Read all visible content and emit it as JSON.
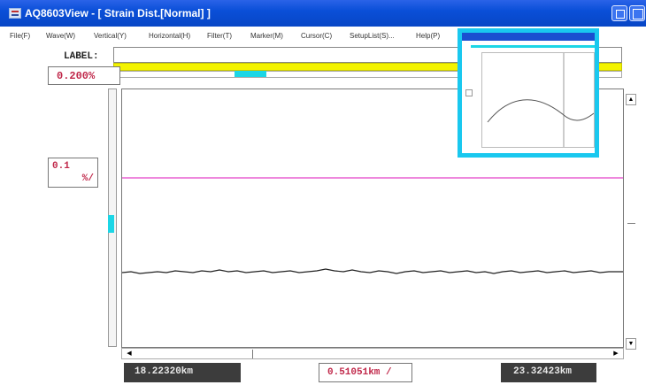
{
  "window": {
    "title": "AQ8603View - [ Strain Dist.[Normal] ]"
  },
  "menu": [
    {
      "label": "File(F)"
    },
    {
      "label": "Wave(W)"
    },
    {
      "label": "Vertical(Y)"
    },
    {
      "label": "Horizontal(H)"
    },
    {
      "label": "Filter(T)"
    },
    {
      "label": "Marker(M)"
    },
    {
      "label": "Cursor(C)"
    },
    {
      "label": "SetupList(S)..."
    },
    {
      "label": "Help(P)"
    }
  ],
  "label_field": {
    "caption": "LABEL:",
    "value": ""
  },
  "readouts": {
    "offset": "0.200%",
    "scale_value": "0.1",
    "scale_unit": "%/",
    "start_distance": "18.22320km",
    "span_per_div": "0.51051km /",
    "end_distance": "23.32423km"
  },
  "colors": {
    "titlebar": "#0a4fd8",
    "marker_line": "#ee88dd",
    "trace": "#222222",
    "readout_text": "#c0284a",
    "highlight_frame": "#19c8ef",
    "yellow_bar": "#f3f300",
    "cyan_marker": "#1cd6e6"
  },
  "icons": {
    "app": "app-icon",
    "minimize": "minimize-icon",
    "maximize": "maximize-icon",
    "scroll_up": "arrow-up-icon",
    "scroll_down": "arrow-down-icon",
    "scroll_left": "arrow-left-icon",
    "scroll_right": "arrow-right-icon"
  }
}
